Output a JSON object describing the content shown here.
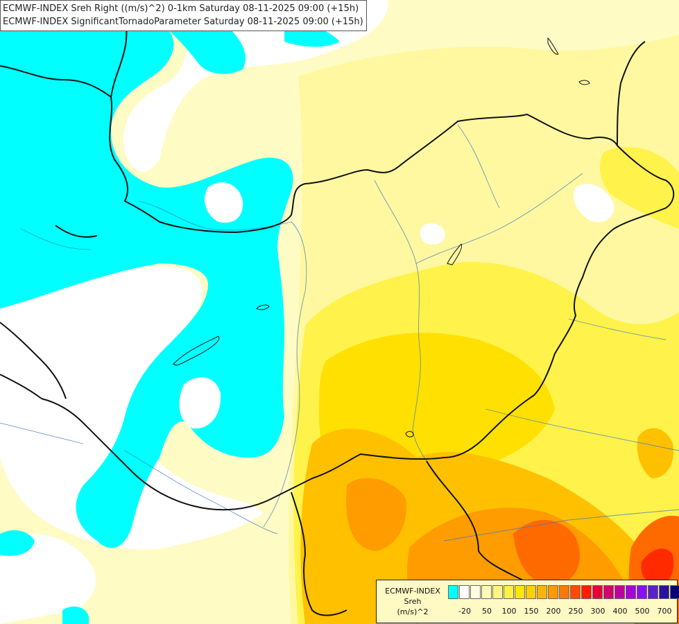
{
  "title": {
    "line1": "ECMWF-INDEX Sreh Right ((m/s)^2) 0-1km Saturday 08-11-2025 09:00 (+15h)",
    "line2": "ECMWF-INDEX SignificantTornadoParameter Saturday 08-11-2025 09:00 (+15h)"
  },
  "legend": {
    "line1": "ECMWF-INDEX",
    "line2": "Sreh",
    "line3": "(m/s)^2",
    "colors": [
      "#00ffff",
      "#ffffff",
      "#ffffe0",
      "#fffbb4",
      "#fff682",
      "#fff044",
      "#ffe600",
      "#ffd000",
      "#ffb400",
      "#ff9a00",
      "#ff7a00",
      "#ff4a00",
      "#ff1c00",
      "#e8003a",
      "#d4006e",
      "#c0009e",
      "#a800d8",
      "#8a10f0",
      "#5c20c8",
      "#2a10a0",
      "#000070"
    ],
    "ticks": [
      "-20",
      "50",
      "100",
      "150",
      "200",
      "250",
      "300",
      "400",
      "500",
      "700"
    ]
  },
  "map": {
    "palette": {
      "cyan": "#00ffff",
      "white": "#ffffff",
      "pale": "#fffbc4",
      "light": "#fff8a0",
      "yellow": "#fff24a",
      "gold": "#ffe000",
      "amber": "#ffc000",
      "orange": "#ff9c00",
      "deep": "#ff6a00",
      "red": "#ff2a00"
    }
  }
}
